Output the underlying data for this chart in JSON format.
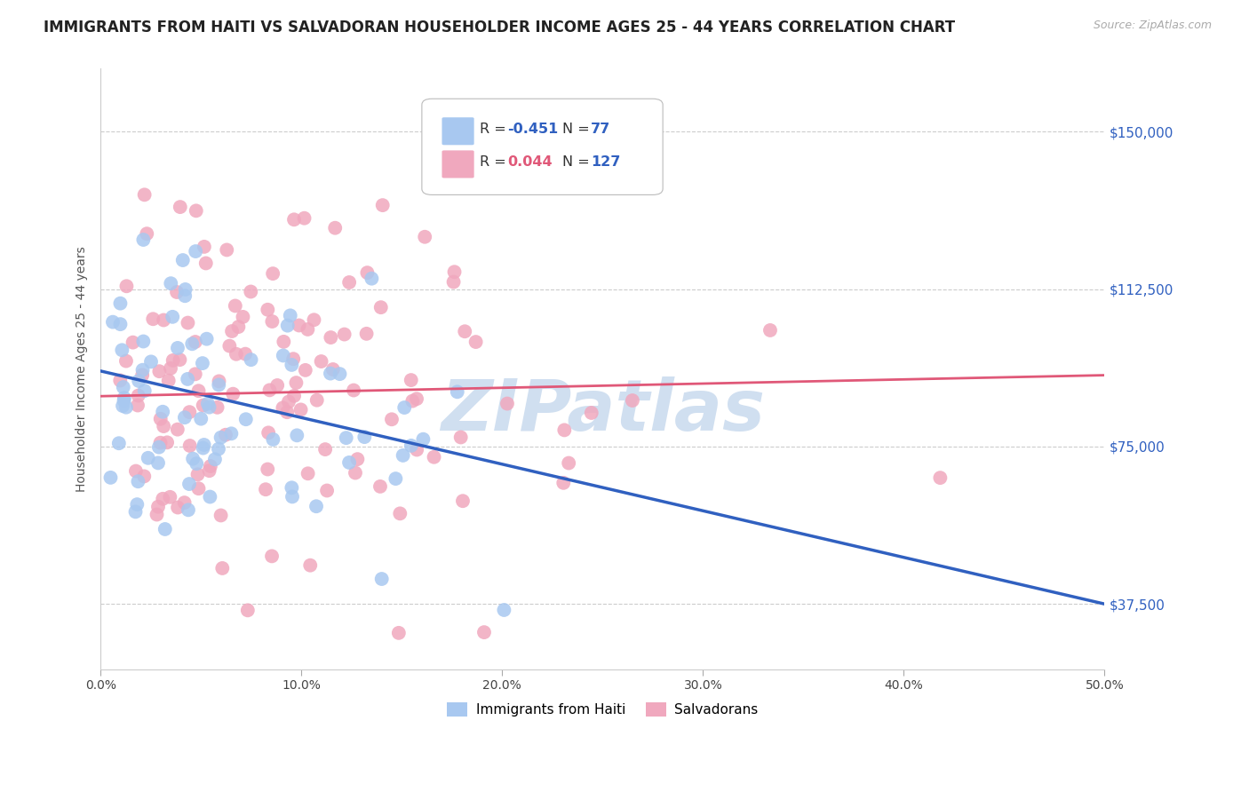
{
  "title": "IMMIGRANTS FROM HAITI VS SALVADORAN HOUSEHOLDER INCOME AGES 25 - 44 YEARS CORRELATION CHART",
  "source": "Source: ZipAtlas.com",
  "ylabel": "Householder Income Ages 25 - 44 years",
  "xlabel_vals": [
    0.0,
    10.0,
    20.0,
    30.0,
    40.0,
    50.0
  ],
  "ylabel_ticks": [
    "$37,500",
    "$75,000",
    "$112,500",
    "$150,000"
  ],
  "ylabel_vals": [
    37500,
    75000,
    112500,
    150000
  ],
  "xlim": [
    0,
    50
  ],
  "ylim": [
    22000,
    165000
  ],
  "haiti_R": -0.451,
  "haiti_N": 77,
  "salvador_R": 0.044,
  "salvador_N": 127,
  "haiti_color": "#a8c8f0",
  "salvador_color": "#f0a8be",
  "haiti_line_color": "#3060c0",
  "salvador_line_color": "#e05878",
  "background_color": "#ffffff",
  "grid_color": "#cccccc",
  "watermark_color": "#d0dff0",
  "haiti_line_x0": 0,
  "haiti_line_y0": 93000,
  "haiti_line_x1": 50,
  "haiti_line_y1": 37500,
  "salvador_line_x0": 0,
  "salvador_line_y0": 87000,
  "salvador_line_x1": 50,
  "salvador_line_y1": 92000,
  "title_fontsize": 12,
  "axis_label_fontsize": 10
}
